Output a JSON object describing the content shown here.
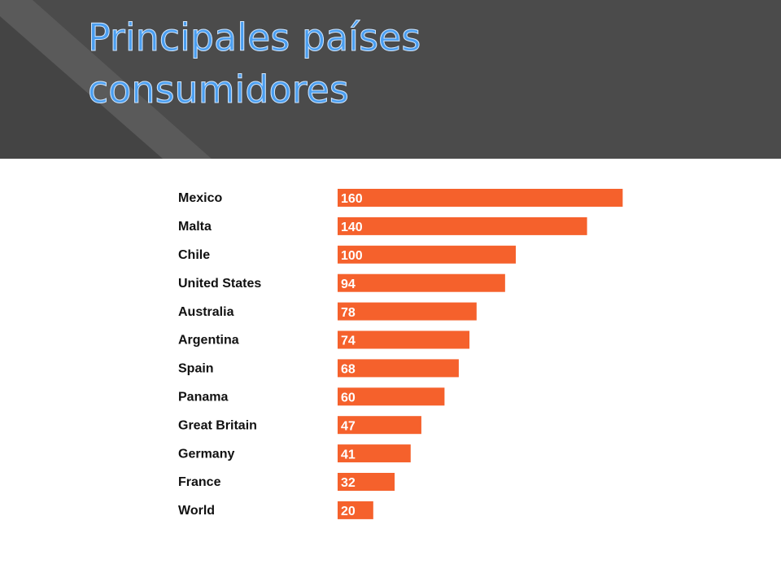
{
  "chart_data": {
    "type": "bar",
    "orientation": "horizontal",
    "title": "Principales países consumidores",
    "categories": [
      "Mexico",
      "Malta",
      "Chile",
      "United States",
      "Australia",
      "Argentina",
      "Spain",
      "Panama",
      "Great Britain",
      "Germany",
      "France",
      "World"
    ],
    "values": [
      160,
      140,
      100,
      94,
      78,
      74,
      68,
      60,
      47,
      41,
      32,
      20
    ],
    "color": "#f5612c"
  }
}
